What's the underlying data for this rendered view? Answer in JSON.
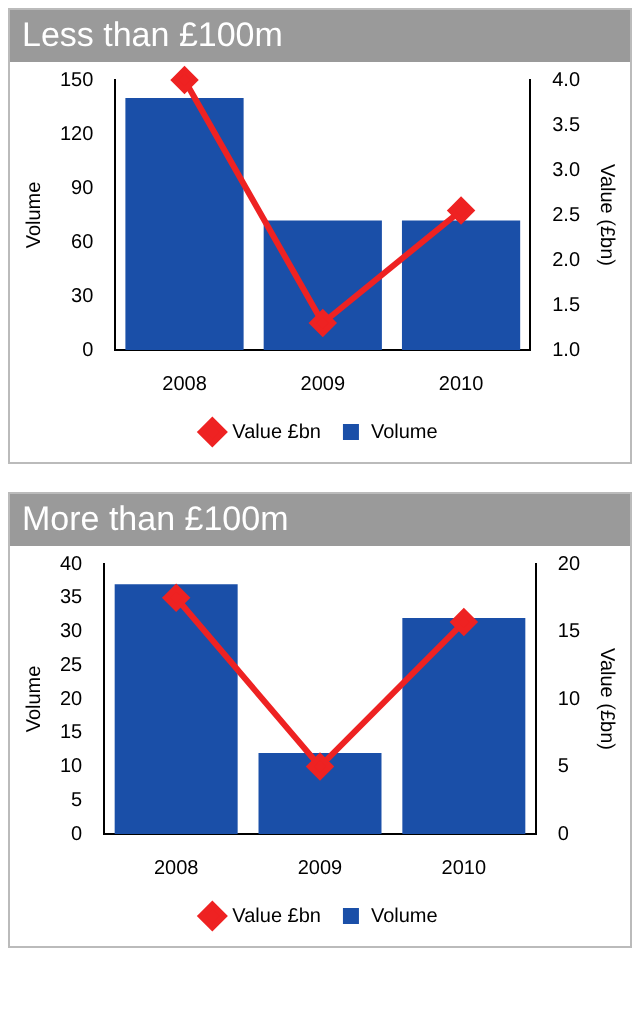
{
  "chart_data": [
    {
      "type": "bar",
      "title": "Less than £100m",
      "categories": [
        "2008",
        "2009",
        "2010"
      ],
      "ylabel": "Volume",
      "y2label": "Value (£bn)",
      "ylim": [
        0,
        150
      ],
      "yticks": [
        0,
        30,
        60,
        90,
        120,
        150
      ],
      "y2lim": [
        1.0,
        4.0
      ],
      "y2ticks": [
        {
          "value": 1,
          "label": "1.0"
        },
        {
          "value": 1.5,
          "label": "1.5"
        },
        {
          "value": 2,
          "label": "2.0"
        },
        {
          "value": 2.5,
          "label": "2.5"
        },
        {
          "value": 3,
          "label": "3.0"
        },
        {
          "value": 3.5,
          "label": "3.5"
        },
        {
          "value": 4,
          "label": "4.0"
        }
      ],
      "legend": "bottom",
      "grid": false,
      "series": [
        {
          "name": "Value £bn",
          "type": "line",
          "axis": "y2",
          "color": "#ee2222",
          "marker": "diamond",
          "values": [
            4.0,
            1.3,
            2.55
          ]
        },
        {
          "name": "Volume",
          "color": "#1a4fa8",
          "values": [
            140,
            72,
            72
          ]
        }
      ]
    },
    {
      "type": "bar",
      "title": "More than £100m",
      "categories": [
        "2008",
        "2009",
        "2010"
      ],
      "ylabel": "Volume",
      "y2label": "Value (£bn)",
      "ylim": [
        0,
        40
      ],
      "yticks": [
        0,
        5,
        10,
        15,
        20,
        25,
        30,
        35,
        40
      ],
      "y2lim": [
        0,
        20
      ],
      "y2ticks": [
        0,
        5,
        10,
        15,
        20
      ],
      "legend": "bottom",
      "grid": false,
      "series": [
        {
          "name": "Value £bn",
          "type": "line",
          "axis": "y2",
          "color": "#ee2222",
          "marker": "diamond",
          "values": [
            17.5,
            5,
            15.7
          ]
        },
        {
          "name": "Volume",
          "color": "#1a4fa8",
          "values": [
            37,
            12,
            32
          ]
        }
      ]
    }
  ]
}
